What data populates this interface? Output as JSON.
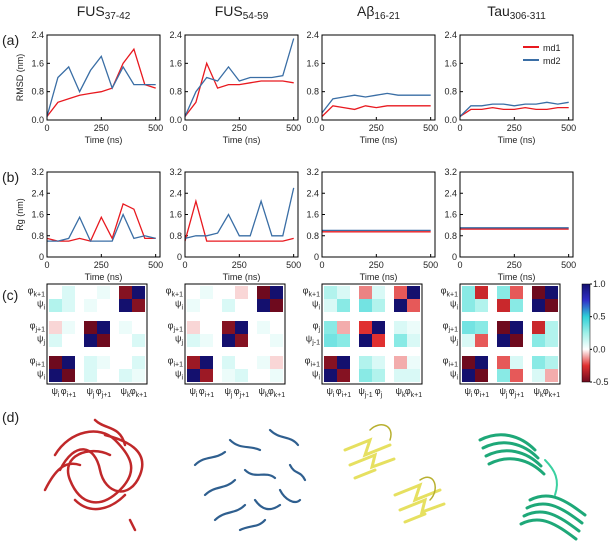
{
  "figure": {
    "panel_labels": [
      "(a)",
      "(b)",
      "(c)",
      "(d)"
    ],
    "colorbar": {
      "lim": [
        -0.5,
        1
      ],
      "ticks": [
        {
          "value": 1,
          "label": "1.0"
        },
        0.5,
        {
          "value": 0,
          "label": "0.0"
        },
        -0.5
      ],
      "colormap": [
        "#6e0a1e",
        "#e03030",
        "#ffffff",
        "#9ff0e8",
        "#30d0d8",
        "#3030c8",
        "#14106e"
      ]
    }
  },
  "chart_data": [
    {
      "type": "line",
      "title": "FUS",
      "title_sub": "37-42",
      "xlabel": "Time (ns)",
      "ylabel": "RMSD (nm)",
      "x": [
        0,
        50,
        100,
        150,
        200,
        250,
        300,
        350,
        400,
        450,
        500
      ],
      "xlim": [
        0,
        520
      ],
      "xticks": [
        0,
        250,
        500
      ],
      "ylim": [
        0,
        2.4
      ],
      "yticks": [
        {
          "value": 0,
          "label": "0.0"
        },
        0.8,
        1.6,
        2.4
      ],
      "series": [
        {
          "name": "md1",
          "color": "#e8191f",
          "values": [
            0.1,
            0.5,
            0.6,
            0.7,
            0.75,
            0.8,
            0.9,
            1.6,
            2.0,
            1.0,
            0.9
          ]
        },
        {
          "name": "md2",
          "color": "#3a6ea5",
          "values": [
            0.1,
            1.2,
            1.5,
            0.8,
            1.4,
            1.8,
            0.9,
            1.5,
            1.0,
            1.0,
            1.0
          ]
        }
      ]
    },
    {
      "type": "line",
      "title": "FUS",
      "title_sub": "54-59",
      "xlabel": "Time (ns)",
      "x": [
        0,
        50,
        100,
        150,
        200,
        250,
        300,
        350,
        400,
        450,
        500
      ],
      "xlim": [
        0,
        520
      ],
      "xticks": [
        0,
        250,
        500
      ],
      "ylim": [
        0,
        2.4
      ],
      "yticks": [
        {
          "value": 0,
          "label": "0.0"
        },
        0.8,
        1.6,
        2.4
      ],
      "series": [
        {
          "name": "md1",
          "color": "#e8191f",
          "values": [
            0.1,
            0.5,
            1.6,
            0.9,
            1.0,
            1.0,
            1.05,
            1.1,
            1.1,
            1.1,
            1.05
          ]
        },
        {
          "name": "md2",
          "color": "#3a6ea5",
          "values": [
            0.1,
            0.8,
            1.2,
            1.1,
            1.5,
            1.1,
            1.2,
            1.2,
            1.2,
            1.25,
            2.3
          ]
        }
      ]
    },
    {
      "type": "line",
      "title": "Aβ",
      "title_sub": "16-21",
      "xlabel": "Time (ns)",
      "x": [
        0,
        50,
        100,
        150,
        200,
        250,
        300,
        350,
        400,
        450,
        500
      ],
      "xlim": [
        0,
        520
      ],
      "xticks": [
        0,
        250,
        500
      ],
      "ylim": [
        0,
        2.4
      ],
      "yticks": [
        {
          "value": 0,
          "label": "0.0"
        },
        0.8,
        1.6,
        2.4
      ],
      "series": [
        {
          "name": "md1",
          "color": "#e8191f",
          "values": [
            0.1,
            0.4,
            0.35,
            0.3,
            0.4,
            0.35,
            0.4,
            0.4,
            0.4,
            0.4,
            0.4
          ]
        },
        {
          "name": "md2",
          "color": "#3a6ea5",
          "values": [
            0.2,
            0.6,
            0.65,
            0.7,
            0.65,
            0.7,
            0.75,
            0.7,
            0.7,
            0.7,
            0.7
          ]
        }
      ]
    },
    {
      "type": "line",
      "title": "Tau",
      "title_sub": "306-311",
      "xlabel": "Time (ns)",
      "legend": "upper right",
      "x": [
        0,
        50,
        100,
        150,
        200,
        250,
        300,
        350,
        400,
        450,
        500
      ],
      "xlim": [
        0,
        520
      ],
      "xticks": [
        0,
        250,
        500
      ],
      "ylim": [
        0,
        2.4
      ],
      "yticks": [
        {
          "value": 0,
          "label": "0.0"
        },
        0.8,
        1.6,
        2.4
      ],
      "series": [
        {
          "name": "md1",
          "color": "#e8191f",
          "values": [
            0.1,
            0.3,
            0.3,
            0.35,
            0.3,
            0.3,
            0.35,
            0.3,
            0.3,
            0.35,
            0.35
          ]
        },
        {
          "name": "md2",
          "color": "#3a6ea5",
          "values": [
            0.1,
            0.4,
            0.4,
            0.45,
            0.45,
            0.4,
            0.45,
            0.45,
            0.5,
            0.45,
            0.5
          ]
        }
      ]
    },
    {
      "type": "line",
      "xlabel": "Time (ns)",
      "ylabel": "Rg (nm)",
      "x": [
        0,
        50,
        100,
        150,
        200,
        250,
        300,
        350,
        400,
        450,
        500
      ],
      "xlim": [
        0,
        520
      ],
      "xticks": [
        0,
        250,
        500
      ],
      "ylim": [
        0,
        3.2
      ],
      "yticks": [
        0,
        0.8,
        1.6,
        2.4,
        3.2
      ],
      "series": [
        {
          "name": "md1",
          "color": "#e8191f",
          "values": [
            0.7,
            0.6,
            0.6,
            0.7,
            0.6,
            1.5,
            0.7,
            2.0,
            1.8,
            0.7,
            0.7
          ]
        },
        {
          "name": "md2",
          "color": "#3a6ea5",
          "values": [
            0.6,
            0.6,
            0.7,
            1.5,
            0.6,
            0.6,
            0.6,
            1.6,
            0.7,
            0.8,
            0.7
          ]
        }
      ]
    },
    {
      "type": "line",
      "xlabel": "Time (ns)",
      "x": [
        0,
        50,
        100,
        150,
        200,
        250,
        300,
        350,
        400,
        450,
        500
      ],
      "xlim": [
        0,
        520
      ],
      "xticks": [
        0,
        250,
        500
      ],
      "ylim": [
        0,
        3.2
      ],
      "yticks": [
        0,
        0.8,
        1.6,
        2.4,
        3.2
      ],
      "series": [
        {
          "name": "md1",
          "color": "#e8191f",
          "values": [
            0.6,
            2.1,
            0.6,
            0.6,
            0.6,
            0.6,
            0.6,
            0.6,
            0.6,
            0.6,
            0.7
          ]
        },
        {
          "name": "md2",
          "color": "#3a6ea5",
          "values": [
            0.7,
            0.8,
            0.8,
            0.9,
            1.6,
            0.8,
            0.8,
            2.1,
            0.8,
            0.8,
            2.6
          ]
        }
      ]
    },
    {
      "type": "line",
      "xlabel": "Time (ns)",
      "x": [
        0,
        50,
        100,
        150,
        200,
        250,
        300,
        350,
        400,
        450,
        500
      ],
      "xlim": [
        0,
        520
      ],
      "xticks": [
        0,
        250,
        500
      ],
      "ylim": [
        0,
        3.2
      ],
      "yticks": [
        0,
        0.8,
        1.6,
        2.4,
        3.2
      ],
      "series": [
        {
          "name": "md1",
          "color": "#e8191f",
          "values": [
            0.95,
            0.95,
            0.95,
            0.95,
            0.95,
            0.95,
            0.95,
            0.95,
            0.95,
            0.95,
            0.95
          ]
        },
        {
          "name": "md2",
          "color": "#3a6ea5",
          "values": [
            1.0,
            1.0,
            1.0,
            1.0,
            1.0,
            1.0,
            1.0,
            1.0,
            1.0,
            1.0,
            1.0
          ]
        }
      ]
    },
    {
      "type": "line",
      "xlabel": "Time (ns)",
      "x": [
        0,
        50,
        100,
        150,
        200,
        250,
        300,
        350,
        400,
        450,
        500
      ],
      "xlim": [
        0,
        520
      ],
      "xticks": [
        0,
        250,
        500
      ],
      "ylim": [
        0,
        3.2
      ],
      "yticks": [
        0,
        0.8,
        1.6,
        2.4,
        3.2
      ],
      "series": [
        {
          "name": "md1",
          "color": "#e8191f",
          "values": [
            1.05,
            1.05,
            1.05,
            1.05,
            1.05,
            1.05,
            1.05,
            1.05,
            1.05,
            1.05,
            1.05
          ]
        },
        {
          "name": "md2",
          "color": "#3a6ea5",
          "values": [
            1.1,
            1.1,
            1.1,
            1.1,
            1.1,
            1.1,
            1.1,
            1.1,
            1.1,
            1.1,
            1.1
          ]
        }
      ]
    },
    {
      "type": "heatmap",
      "ylabels": [
        {
          "symbol": "φ",
          "sub": "k+1"
        },
        {
          "symbol": "ψ",
          "sub": "i"
        },
        {
          "symbol": "φ",
          "sub": "j+1"
        },
        {
          "symbol": "ψ",
          "sub": "j"
        },
        {
          "symbol": "φ",
          "sub": "i+1"
        },
        {
          "symbol": "ψ",
          "sub": "i"
        }
      ],
      "xlabels": [
        {
          "symbol": "ψ",
          "sub": "i"
        },
        {
          "symbol": "φ",
          "sub": "i+1"
        },
        {
          "symbol": "ψ",
          "sub": "j"
        },
        {
          "symbol": "φ",
          "sub": "j+1"
        },
        {
          "symbol": "ψ",
          "sub": "k"
        },
        {
          "symbol": "φ",
          "sub": "k+1"
        }
      ],
      "values": [
        [
          0,
          0.1,
          0,
          0.05,
          -0.45,
          1
        ],
        [
          0.2,
          0.1,
          0.05,
          0,
          1,
          -0.45
        ],
        [
          -0.05,
          0.05,
          -0.5,
          1,
          0.05,
          0
        ],
        [
          0.1,
          0,
          1,
          -0.5,
          0,
          0.1
        ],
        [
          -0.5,
          1,
          0.1,
          0.05,
          0,
          0.1
        ],
        [
          1,
          -0.5,
          0.1,
          0,
          0.1,
          0.05
        ]
      ]
    },
    {
      "type": "heatmap",
      "ylabels": [
        {
          "symbol": "φ",
          "sub": "k+1"
        },
        {
          "symbol": "ψ",
          "sub": "i"
        },
        {
          "symbol": "φ",
          "sub": "j+1"
        },
        {
          "symbol": "ψ",
          "sub": "j"
        },
        {
          "symbol": "φ",
          "sub": "i+1"
        },
        {
          "symbol": "ψ",
          "sub": "i"
        }
      ],
      "xlabels": [
        {
          "symbol": "ψ",
          "sub": "i"
        },
        {
          "symbol": "φ",
          "sub": "i+1"
        },
        {
          "symbol": "ψ",
          "sub": "j"
        },
        {
          "symbol": "φ",
          "sub": "j+1"
        },
        {
          "symbol": "ψ",
          "sub": "k"
        },
        {
          "symbol": "φ",
          "sub": "k+1"
        }
      ],
      "values": [
        [
          0,
          0.05,
          0,
          -0.05,
          -0.5,
          1
        ],
        [
          0.05,
          0,
          0.1,
          0,
          1,
          -0.5
        ],
        [
          -0.05,
          0,
          -0.45,
          1,
          0.05,
          0
        ],
        [
          0.1,
          0.05,
          1,
          -0.45,
          0,
          0.05
        ],
        [
          -0.4,
          1,
          0.1,
          0,
          0.05,
          -0.05
        ],
        [
          1,
          -0.4,
          0.05,
          0.1,
          0,
          0.05
        ]
      ]
    },
    {
      "type": "heatmap",
      "ylabels": [
        {
          "symbol": "φ",
          "sub": "k+1"
        },
        {
          "symbol": "ψ",
          "sub": "i"
        },
        {
          "symbol": "φ",
          "sub": "j"
        },
        {
          "symbol": "ψ",
          "sub": "j-1"
        },
        {
          "symbol": "φ",
          "sub": "i+1"
        },
        {
          "symbol": "ψ",
          "sub": "i"
        }
      ],
      "xlabels": [
        {
          "symbol": "ψ",
          "sub": "i"
        },
        {
          "symbol": "φ",
          "sub": "i+1"
        },
        {
          "symbol": "ψ",
          "sub": "j-1"
        },
        {
          "symbol": "φ",
          "sub": "j"
        },
        {
          "symbol": "ψ",
          "sub": "k"
        },
        {
          "symbol": "φ",
          "sub": "k+1"
        }
      ],
      "values": [
        [
          0.2,
          0.1,
          -0.15,
          0.1,
          -0.2,
          1
        ],
        [
          0.1,
          0.3,
          0.35,
          0.2,
          1,
          -0.2
        ],
        [
          0.3,
          -0.1,
          -0.25,
          1,
          0.1,
          0.05
        ],
        [
          0.35,
          0.3,
          1,
          -0.25,
          0.3,
          0.1
        ],
        [
          -0.45,
          1,
          0.2,
          0.1,
          -0.1,
          0.05
        ],
        [
          1,
          -0.45,
          0.3,
          0.2,
          0.1,
          0.1
        ]
      ]
    },
    {
      "type": "heatmap",
      "ylabels": [
        {
          "symbol": "φ",
          "sub": "k+1"
        },
        {
          "symbol": "ψ",
          "sub": "i"
        },
        {
          "symbol": "φ",
          "sub": "j+1"
        },
        {
          "symbol": "ψ",
          "sub": "j"
        },
        {
          "symbol": "φ",
          "sub": "i+1"
        },
        {
          "symbol": "ψ",
          "sub": "i"
        }
      ],
      "xlabels": [
        {
          "symbol": "ψ",
          "sub": "i"
        },
        {
          "symbol": "φ",
          "sub": "i+1"
        },
        {
          "symbol": "ψ",
          "sub": "j"
        },
        {
          "symbol": "φ",
          "sub": "j+1"
        },
        {
          "symbol": "ψ",
          "sub": "k"
        },
        {
          "symbol": "φ",
          "sub": "k+1"
        }
      ],
      "values": [
        [
          0.3,
          -0.3,
          0.3,
          -0.2,
          -0.5,
          1
        ],
        [
          0.3,
          0.2,
          -0.3,
          0.3,
          1,
          -0.5
        ],
        [
          0.35,
          0.3,
          -0.5,
          1,
          -0.3,
          0.2
        ],
        [
          0.1,
          -0.2,
          1,
          -0.5,
          0.3,
          0.2
        ],
        [
          -0.5,
          1,
          -0.2,
          0.1,
          0.3,
          0.2
        ],
        [
          1,
          -0.5,
          0.3,
          -0.2,
          0.1,
          -0.1
        ]
      ]
    }
  ]
}
